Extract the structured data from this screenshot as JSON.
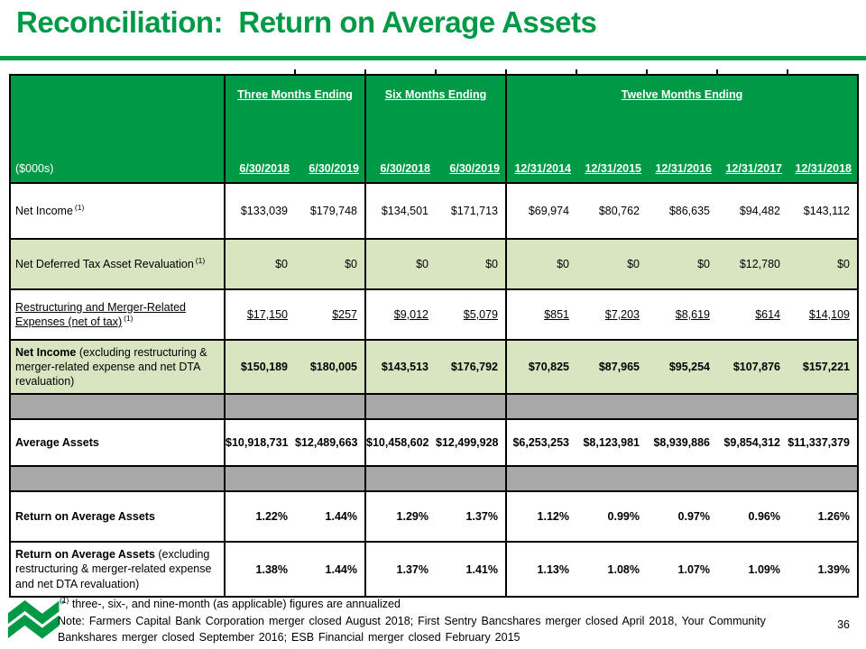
{
  "slide": {
    "title": "Reconciliation:  Return on Average Assets",
    "page_number": "36",
    "accent_green": "#009a47",
    "light_green": "#d9e5c0",
    "separator_gray": "#a8a8a8"
  },
  "table": {
    "unit_label": "($000s)",
    "groups": [
      {
        "label": "Three Months Ending",
        "dates": [
          "6/30/2018",
          "6/30/2019"
        ]
      },
      {
        "label": "Six Months Ending",
        "dates": [
          "6/30/2018",
          "6/30/2019"
        ]
      },
      {
        "label": "Twelve Months Ending",
        "dates": [
          "12/31/2014",
          "12/31/2015",
          "12/31/2016",
          "12/31/2017",
          "12/31/2018"
        ]
      }
    ],
    "rows": [
      {
        "style": "white",
        "label_regular": "Net Income",
        "label_sup": "(1)",
        "values": [
          "$133,039",
          "$179,748",
          "$134,501",
          "$171,713",
          "$69,974",
          "$80,762",
          "$86,635",
          "$94,482",
          "$143,112"
        ]
      },
      {
        "style": "green",
        "label_regular": "Net Deferred Tax Asset Revaluation",
        "label_sup": "(1)",
        "values": [
          "$0",
          "$0",
          "$0",
          "$0",
          "$0",
          "$0",
          "$0",
          "$12,780",
          "$0"
        ]
      },
      {
        "style": "white",
        "label_regular": "Restructuring and Merger-Related Expenses (net of tax)",
        "label_sup": "(1)",
        "label_underline": true,
        "values_underline": true,
        "values": [
          "$17,150",
          "$257",
          "$9,012",
          "$5,079",
          "$851",
          "$7,203",
          "$8,619",
          "$614",
          "$14,109"
        ]
      },
      {
        "style": "green",
        "label_bold": "Net Income",
        "label_regular": " (excluding restructuring & merger-related expense and net DTA revaluation)",
        "values_bold": true,
        "values": [
          "$150,189",
          "$180,005",
          "$143,513",
          "$176,792",
          "$70,825",
          "$87,965",
          "$95,254",
          "$107,876",
          "$157,221"
        ]
      },
      {
        "style": "gray",
        "values": []
      },
      {
        "style": "white",
        "label_bold": "Average Assets",
        "values_bold": true,
        "values": [
          "$10,918,731",
          "$12,489,663",
          "$10,458,602",
          "$12,499,928",
          "$6,253,253",
          "$8,123,981",
          "$8,939,886",
          "$9,854,312",
          "$11,337,379"
        ]
      },
      {
        "style": "gray",
        "values": []
      },
      {
        "style": "white",
        "label_bold": "Return on Average Assets",
        "values_bold": true,
        "values": [
          "1.22%",
          "1.44%",
          "1.29%",
          "1.37%",
          "1.12%",
          "0.99%",
          "0.97%",
          "0.96%",
          "1.26%"
        ]
      },
      {
        "style": "white",
        "label_bold": "Return on Average Assets",
        "label_regular": " (excluding restructuring & merger-related expense and net DTA revaluation)",
        "values_bold": true,
        "values": [
          "1.38%",
          "1.44%",
          "1.37%",
          "1.41%",
          "1.13%",
          "1.08%",
          "1.07%",
          "1.09%",
          "1.39%"
        ]
      }
    ]
  },
  "footer": {
    "footnote_sup": "(1)",
    "footnote_text": " three-, six-, and nine-month (as applicable) figures are annualized",
    "note_text": "Note: Farmers Capital Bank Corporation merger closed August 2018; First Sentry Bancshares merger closed April 2018, Your Community Bankshares merger closed September 2016; ESB Financial merger closed February 2015"
  }
}
